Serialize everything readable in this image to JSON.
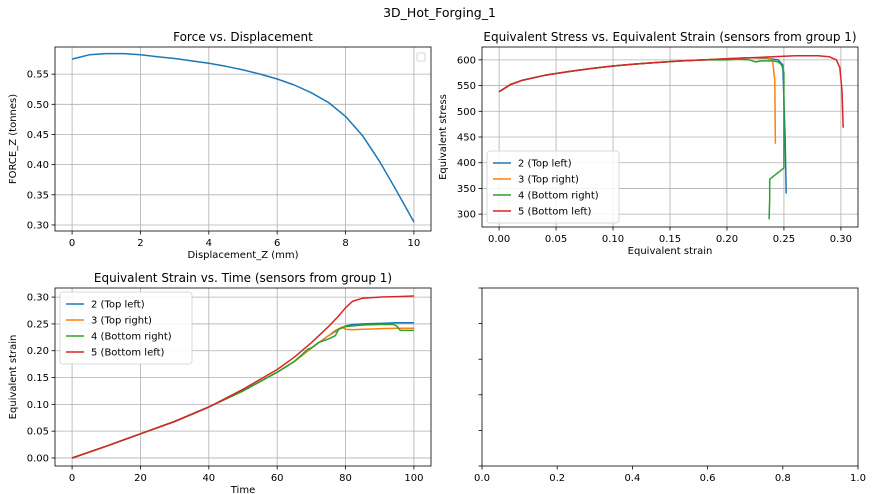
{
  "figure": {
    "suptitle": "3D_Hot_Forging_1"
  },
  "colors": {
    "blue": "#1f77b4",
    "orange": "#ff7f0e",
    "green": "#2ca02c",
    "red": "#d62728",
    "grid": "#b0b0b0"
  },
  "chart_data": [
    {
      "id": "force",
      "type": "line",
      "title": "Force vs. Displacement",
      "xlabel": "Displacement_Z (mm)",
      "ylabel": "FORCE_Z (tonnes)",
      "xlim": [
        -0.5,
        10.5
      ],
      "ylim": [
        0.29,
        0.595
      ],
      "xticks": [
        0,
        2,
        4,
        6,
        8,
        10
      ],
      "yticks": [
        0.3,
        0.35,
        0.4,
        0.45,
        0.5,
        0.55
      ],
      "ytick_labels": [
        "0.30",
        "0.35",
        "0.40",
        "0.45",
        "0.50",
        "0.55"
      ],
      "grid": true,
      "legend": "top-right (empty)",
      "series": [
        {
          "color": "#1f77b4",
          "x": [
            0,
            0.5,
            1,
            1.5,
            2,
            2.5,
            3,
            3.5,
            4,
            4.5,
            5,
            5.5,
            6,
            6.5,
            7,
            7.5,
            8,
            8.5,
            9,
            9.5,
            10
          ],
          "y": [
            0.575,
            0.582,
            0.584,
            0.584,
            0.582,
            0.579,
            0.576,
            0.572,
            0.568,
            0.563,
            0.557,
            0.55,
            0.542,
            0.532,
            0.519,
            0.503,
            0.48,
            0.448,
            0.405,
            0.356,
            0.305
          ]
        }
      ]
    },
    {
      "id": "stress",
      "type": "line",
      "title": "Equivalent Stress vs. Equivalent Strain (sensors from group 1)",
      "xlabel": "Equivalent strain",
      "ylabel": "Equivalent stress",
      "xlim": [
        -0.015,
        0.315
      ],
      "ylim": [
        275,
        625
      ],
      "xticks": [
        0.0,
        0.05,
        0.1,
        0.15,
        0.2,
        0.25,
        0.3
      ],
      "xtick_labels": [
        "0.00",
        "0.05",
        "0.10",
        "0.15",
        "0.20",
        "0.25",
        "0.30"
      ],
      "yticks": [
        300,
        350,
        400,
        450,
        500,
        550,
        600
      ],
      "grid": true,
      "legend": "lower-left",
      "series": [
        {
          "name": "2 (Top left)",
          "color": "#1f77b4",
          "x": [
            0,
            0.01,
            0.02,
            0.04,
            0.06,
            0.08,
            0.1,
            0.12,
            0.14,
            0.16,
            0.18,
            0.2,
            0.22,
            0.235,
            0.245,
            0.249,
            0.251,
            0.252
          ],
          "y": [
            538,
            552,
            560,
            570,
            577,
            583,
            588,
            592,
            595,
            598,
            600,
            602,
            604,
            603,
            600,
            590,
            450,
            340
          ]
        },
        {
          "name": "3 (Top right)",
          "color": "#ff7f0e",
          "x": [
            0,
            0.01,
            0.02,
            0.04,
            0.06,
            0.08,
            0.1,
            0.12,
            0.14,
            0.16,
            0.18,
            0.2,
            0.22,
            0.235,
            0.24,
            0.242,
            0.2425
          ],
          "y": [
            538,
            552,
            560,
            570,
            577,
            583,
            588,
            592,
            595,
            598,
            600,
            602,
            604,
            604,
            600,
            560,
            437
          ]
        },
        {
          "name": "4 (Bottom right)",
          "color": "#2ca02c",
          "x": [
            0,
            0.01,
            0.02,
            0.04,
            0.06,
            0.08,
            0.1,
            0.12,
            0.14,
            0.16,
            0.18,
            0.2,
            0.21,
            0.22,
            0.225,
            0.23,
            0.24,
            0.245,
            0.248,
            0.25,
            0.25,
            0.25,
            0.2375,
            0.2375,
            0.237
          ],
          "y": [
            538,
            552,
            560,
            570,
            577,
            583,
            588,
            592,
            595,
            598,
            600,
            600,
            601,
            600,
            596,
            598,
            598,
            596,
            590,
            575,
            400,
            390,
            368,
            330,
            290
          ]
        },
        {
          "name": "5 (Bottom left)",
          "color": "#d62728",
          "x": [
            0,
            0.01,
            0.02,
            0.04,
            0.06,
            0.08,
            0.1,
            0.12,
            0.14,
            0.16,
            0.18,
            0.2,
            0.22,
            0.24,
            0.26,
            0.28,
            0.29,
            0.296,
            0.299,
            0.301,
            0.302
          ],
          "y": [
            538,
            552,
            560,
            570,
            577,
            583,
            588,
            592,
            595,
            598,
            600,
            602,
            604,
            606,
            608,
            608,
            606,
            600,
            585,
            540,
            468
          ]
        }
      ]
    },
    {
      "id": "strain",
      "type": "line",
      "title": "Equivalent Strain vs. Time (sensors from group 1)",
      "xlabel": "Time",
      "ylabel": "Equivalent strain",
      "xlim": [
        -5,
        105
      ],
      "ylim": [
        -0.015,
        0.317
      ],
      "xticks": [
        0,
        20,
        40,
        60,
        80,
        100
      ],
      "yticks": [
        0.0,
        0.05,
        0.1,
        0.15,
        0.2,
        0.25,
        0.3
      ],
      "ytick_labels": [
        "0.00",
        "0.05",
        "0.10",
        "0.15",
        "0.20",
        "0.25",
        "0.30"
      ],
      "grid": true,
      "legend": "upper-left",
      "series": [
        {
          "name": "2 (Top left)",
          "color": "#1f77b4",
          "x": [
            0,
            10,
            20,
            30,
            40,
            50,
            60,
            65,
            70,
            75,
            78,
            80,
            82,
            85,
            90,
            95,
            100
          ],
          "y": [
            0,
            0.022,
            0.045,
            0.068,
            0.095,
            0.125,
            0.16,
            0.18,
            0.205,
            0.228,
            0.24,
            0.246,
            0.249,
            0.25,
            0.251,
            0.252,
            0.252
          ]
        },
        {
          "name": "3 (Top right)",
          "color": "#ff7f0e",
          "x": [
            0,
            10,
            20,
            30,
            40,
            50,
            60,
            65,
            70,
            75,
            77,
            79,
            80,
            82,
            85,
            90,
            95,
            100
          ],
          "y": [
            0,
            0.022,
            0.045,
            0.068,
            0.095,
            0.125,
            0.16,
            0.18,
            0.205,
            0.228,
            0.238,
            0.244,
            0.24,
            0.239,
            0.24,
            0.241,
            0.242,
            0.242
          ]
        },
        {
          "name": "4 (Bottom right)",
          "color": "#2ca02c",
          "x": [
            0,
            10,
            20,
            30,
            40,
            50,
            60,
            65,
            68,
            69,
            70,
            72,
            75,
            77,
            78,
            80,
            85,
            90,
            94,
            95,
            96,
            100
          ],
          "y": [
            0,
            0.022,
            0.045,
            0.068,
            0.095,
            0.125,
            0.16,
            0.18,
            0.197,
            0.203,
            0.205,
            0.215,
            0.222,
            0.228,
            0.24,
            0.245,
            0.248,
            0.249,
            0.249,
            0.246,
            0.238,
            0.238
          ]
        },
        {
          "name": "5 (Bottom left)",
          "color": "#d62728",
          "x": [
            0,
            10,
            20,
            30,
            40,
            50,
            60,
            65,
            70,
            75,
            78,
            80,
            82,
            85,
            90,
            95,
            100
          ],
          "y": [
            0,
            0.022,
            0.045,
            0.068,
            0.095,
            0.128,
            0.165,
            0.188,
            0.215,
            0.245,
            0.265,
            0.28,
            0.292,
            0.298,
            0.3,
            0.301,
            0.302
          ]
        }
      ]
    },
    {
      "id": "empty",
      "type": "line",
      "title": "",
      "xlim": [
        0,
        1
      ],
      "ylim": [
        0,
        1
      ],
      "xticks": [
        0.0,
        0.2,
        0.4,
        0.6,
        0.8,
        1.0
      ],
      "xtick_labels": [
        "0.0",
        "0.2",
        "0.4",
        "0.6",
        "0.8",
        "1.0"
      ],
      "yticks": [],
      "grid": false,
      "series": []
    }
  ]
}
